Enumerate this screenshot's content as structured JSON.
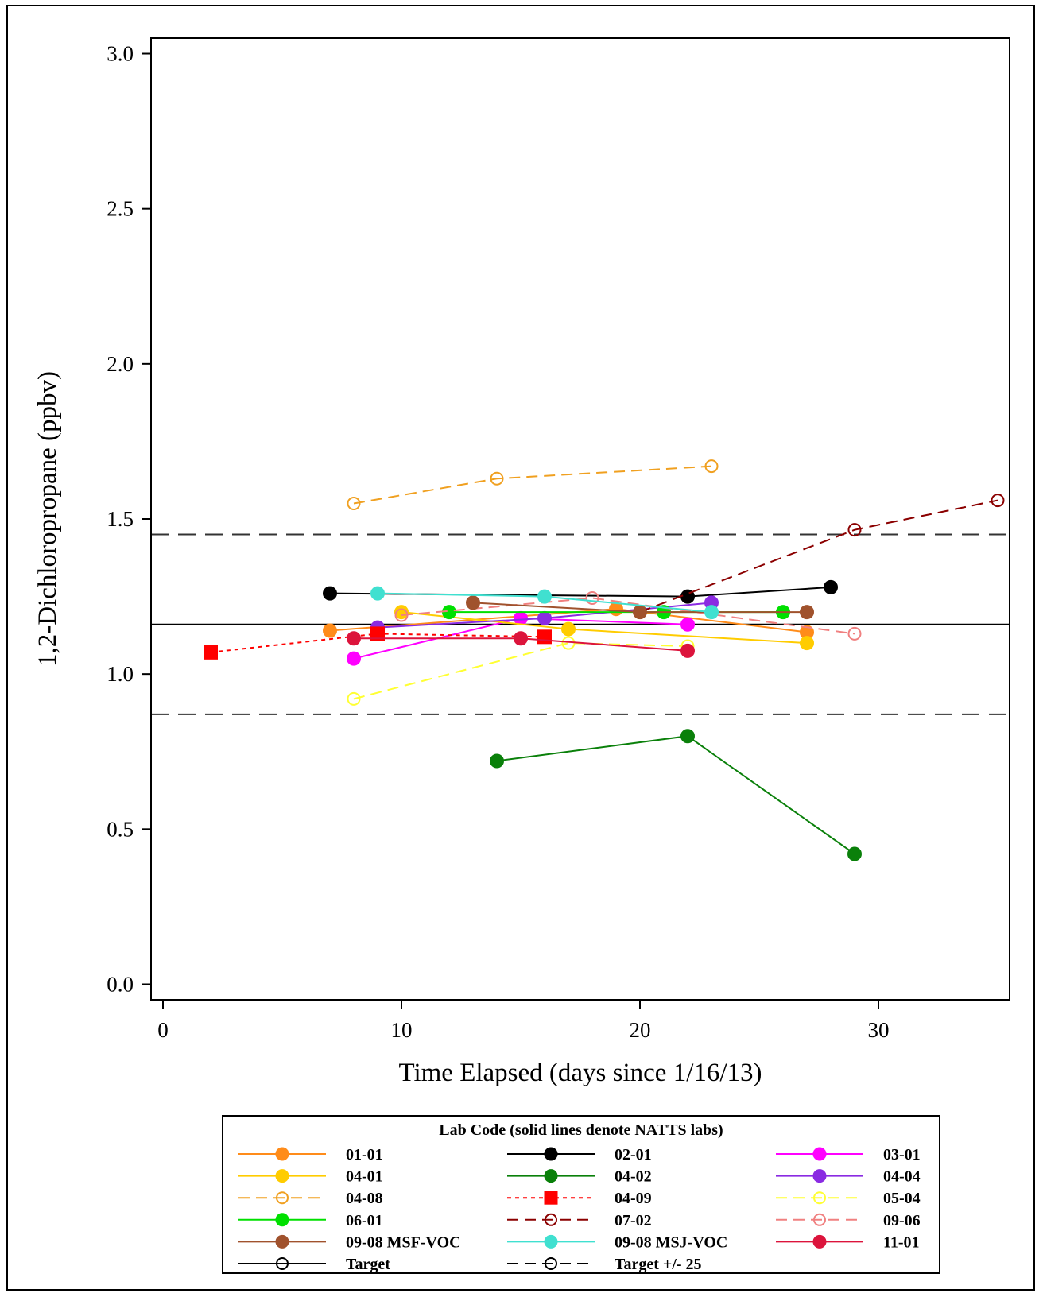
{
  "chart_data": {
    "type": "line",
    "xlabel": "Time Elapsed (days since 1/16/13)",
    "ylabel": "1,2-Dichloropropane (ppbv)",
    "xlim": [
      -0.5,
      35.5
    ],
    "ylim": [
      -0.05,
      3.05
    ],
    "x_ticks": [
      0,
      10,
      20,
      30
    ],
    "y_ticks": [
      0.0,
      0.5,
      1.0,
      1.5,
      2.0,
      2.5,
      3.0
    ],
    "x_tick_labels": [
      "0",
      "10",
      "20",
      "30"
    ],
    "y_tick_labels": [
      "0.0",
      "0.5",
      "1.0",
      "1.5",
      "2.0",
      "2.5",
      "3.0"
    ],
    "legend_title": "Lab Code (solid lines denote NATTS labs)",
    "legend_placement": "bottom",
    "reference_lines": [
      {
        "name": "Target",
        "y": 1.16,
        "style": "solid",
        "color": "#000000"
      },
      {
        "name": "Target +/- 25",
        "y": 1.45,
        "style": "dashed",
        "color": "#333333"
      },
      {
        "name": "Target +/- 25",
        "y": 0.87,
        "style": "dashed",
        "color": "#333333"
      }
    ],
    "series": [
      {
        "name": "01-01",
        "color": "#FF8C1A",
        "dash": "solid",
        "marker": "filled-circle",
        "points": [
          [
            7,
            1.14
          ],
          [
            19,
            1.21
          ],
          [
            27,
            1.135
          ]
        ]
      },
      {
        "name": "02-01",
        "color": "#000000",
        "dash": "solid",
        "marker": "filled-circle",
        "points": [
          [
            7,
            1.26
          ],
          [
            22,
            1.25
          ],
          [
            28,
            1.28
          ]
        ]
      },
      {
        "name": "03-01",
        "color": "#FF00FF",
        "dash": "solid",
        "marker": "filled-circle",
        "points": [
          [
            8,
            1.05
          ],
          [
            15,
            1.18
          ],
          [
            22,
            1.16
          ]
        ]
      },
      {
        "name": "04-01",
        "color": "#FFCC00",
        "dash": "solid",
        "marker": "filled-circle",
        "points": [
          [
            10,
            1.2
          ],
          [
            17,
            1.145
          ],
          [
            27,
            1.1
          ]
        ]
      },
      {
        "name": "04-02",
        "color": "#0A800A",
        "dash": "solid",
        "marker": "filled-circle",
        "points": [
          [
            14,
            0.72
          ],
          [
            22,
            0.8
          ],
          [
            29,
            0.42
          ]
        ]
      },
      {
        "name": "04-04",
        "color": "#8A2BE2",
        "dash": "solid",
        "marker": "filled-circle",
        "points": [
          [
            9,
            1.15
          ],
          [
            16,
            1.18
          ],
          [
            23,
            1.23
          ]
        ]
      },
      {
        "name": "04-08",
        "color": "#F0A020",
        "dash": "dashed",
        "marker": "open-circle",
        "points": [
          [
            8,
            1.55
          ],
          [
            14,
            1.63
          ],
          [
            23,
            1.67
          ]
        ]
      },
      {
        "name": "04-09",
        "color": "#FF0000",
        "dash": "dotted",
        "marker": "filled-square",
        "points": [
          [
            2,
            1.07
          ],
          [
            9,
            1.13
          ],
          [
            16,
            1.12
          ]
        ]
      },
      {
        "name": "05-04",
        "color": "#FFFF33",
        "dash": "dashed",
        "marker": "open-circle",
        "points": [
          [
            8,
            0.92
          ],
          [
            17,
            1.1
          ],
          [
            22,
            1.09
          ]
        ]
      },
      {
        "name": "06-01",
        "color": "#00E000",
        "dash": "solid",
        "marker": "filled-circle",
        "points": [
          [
            12,
            1.2
          ],
          [
            21,
            1.2
          ],
          [
            26,
            1.2
          ]
        ]
      },
      {
        "name": "07-02",
        "color": "#8B0000",
        "dash": "dashed",
        "marker": "open-circle",
        "points": [
          [
            20,
            1.2
          ],
          [
            29,
            1.465
          ],
          [
            35,
            1.56
          ]
        ]
      },
      {
        "name": "09-06",
        "color": "#F08080",
        "dash": "dashed",
        "marker": "open-circle",
        "points": [
          [
            10,
            1.19
          ],
          [
            18,
            1.245
          ],
          [
            29,
            1.13
          ]
        ]
      },
      {
        "name": "09-08 MSF-VOC",
        "color": "#A0522D",
        "dash": "solid",
        "marker": "filled-circle",
        "points": [
          [
            13,
            1.23
          ],
          [
            20,
            1.2
          ],
          [
            27,
            1.2
          ]
        ]
      },
      {
        "name": "09-08 MSJ-VOC",
        "color": "#40E0D0",
        "dash": "solid",
        "marker": "filled-circle",
        "points": [
          [
            9,
            1.26
          ],
          [
            16,
            1.25
          ],
          [
            23,
            1.2
          ]
        ]
      },
      {
        "name": "11-01",
        "color": "#DC143C",
        "dash": "solid",
        "marker": "filled-circle",
        "points": [
          [
            8,
            1.115
          ],
          [
            15,
            1.115
          ],
          [
            22,
            1.075
          ]
        ]
      }
    ],
    "legend_entries": [
      {
        "name": "01-01",
        "color": "#FF8C1A",
        "dash": "solid",
        "marker": "filled-circle"
      },
      {
        "name": "02-01",
        "color": "#000000",
        "dash": "solid",
        "marker": "filled-circle"
      },
      {
        "name": "03-01",
        "color": "#FF00FF",
        "dash": "solid",
        "marker": "filled-circle"
      },
      {
        "name": "04-01",
        "color": "#FFCC00",
        "dash": "solid",
        "marker": "filled-circle"
      },
      {
        "name": "04-02",
        "color": "#0A800A",
        "dash": "solid",
        "marker": "filled-circle"
      },
      {
        "name": "04-04",
        "color": "#8A2BE2",
        "dash": "solid",
        "marker": "filled-circle"
      },
      {
        "name": "04-08",
        "color": "#F0A020",
        "dash": "dashed",
        "marker": "open-circle"
      },
      {
        "name": "04-09",
        "color": "#FF0000",
        "dash": "dotted",
        "marker": "filled-square"
      },
      {
        "name": "05-04",
        "color": "#FFFF33",
        "dash": "dashed",
        "marker": "open-circle"
      },
      {
        "name": "06-01",
        "color": "#00E000",
        "dash": "solid",
        "marker": "filled-circle"
      },
      {
        "name": "07-02",
        "color": "#8B0000",
        "dash": "dashed",
        "marker": "open-circle"
      },
      {
        "name": "09-06",
        "color": "#F08080",
        "dash": "dashed",
        "marker": "open-circle"
      },
      {
        "name": "09-08 MSF-VOC",
        "color": "#A0522D",
        "dash": "solid",
        "marker": "filled-circle"
      },
      {
        "name": "09-08 MSJ-VOC",
        "color": "#40E0D0",
        "dash": "solid",
        "marker": "filled-circle"
      },
      {
        "name": "11-01",
        "color": "#DC143C",
        "dash": "solid",
        "marker": "filled-circle"
      },
      {
        "name": "Target",
        "color": "#000000",
        "dash": "solid",
        "marker": "open-circle"
      },
      {
        "name": "Target +/- 25",
        "color": "#000000",
        "dash": "dashed",
        "marker": "open-circle"
      }
    ]
  }
}
